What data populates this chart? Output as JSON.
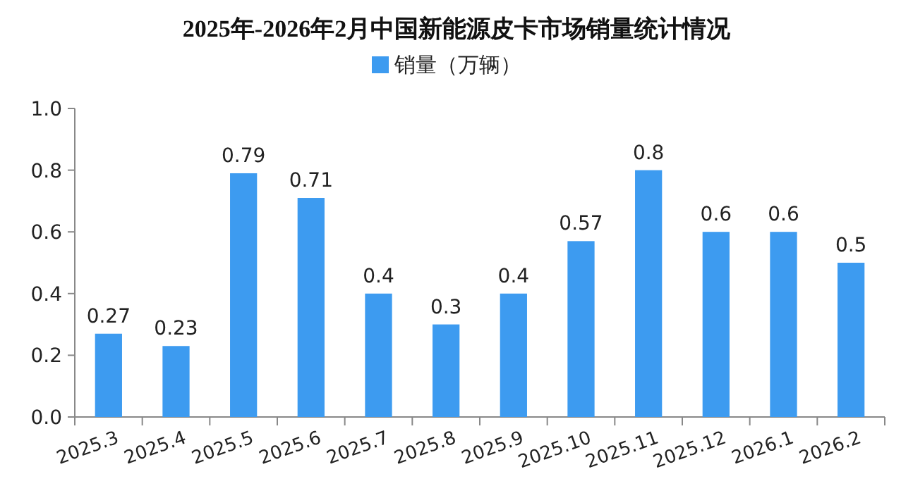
{
  "chart_data": {
    "type": "bar",
    "title": "2025年-2026年2月中国新能源皮卡市场销量统计情况",
    "categories": [
      "2025.3",
      "2025.4",
      "2025.5",
      "2025.6",
      "2025.7",
      "2025.8",
      "2025.9",
      "2025.10",
      "2025.11",
      "2025.12",
      "2026.1",
      "2026.2"
    ],
    "series": [
      {
        "name": "销量（万辆）",
        "color": "#3d9bf0",
        "values": [
          0.27,
          0.23,
          0.79,
          0.71,
          0.4,
          0.3,
          0.4,
          0.57,
          0.8,
          0.6,
          0.6,
          0.5
        ]
      }
    ],
    "ylim": [
      0,
      1
    ],
    "yticks": [
      {
        "value": 0,
        "label": "0.0"
      },
      {
        "value": 0.2,
        "label": "0.2"
      },
      {
        "value": 0.4,
        "label": "0.4"
      },
      {
        "value": 0.6,
        "label": "0.6"
      },
      {
        "value": 0.8,
        "label": "0.8"
      },
      {
        "value": 1,
        "label": "1.0"
      }
    ],
    "data_labels": true,
    "legend": "top",
    "grid": false
  }
}
